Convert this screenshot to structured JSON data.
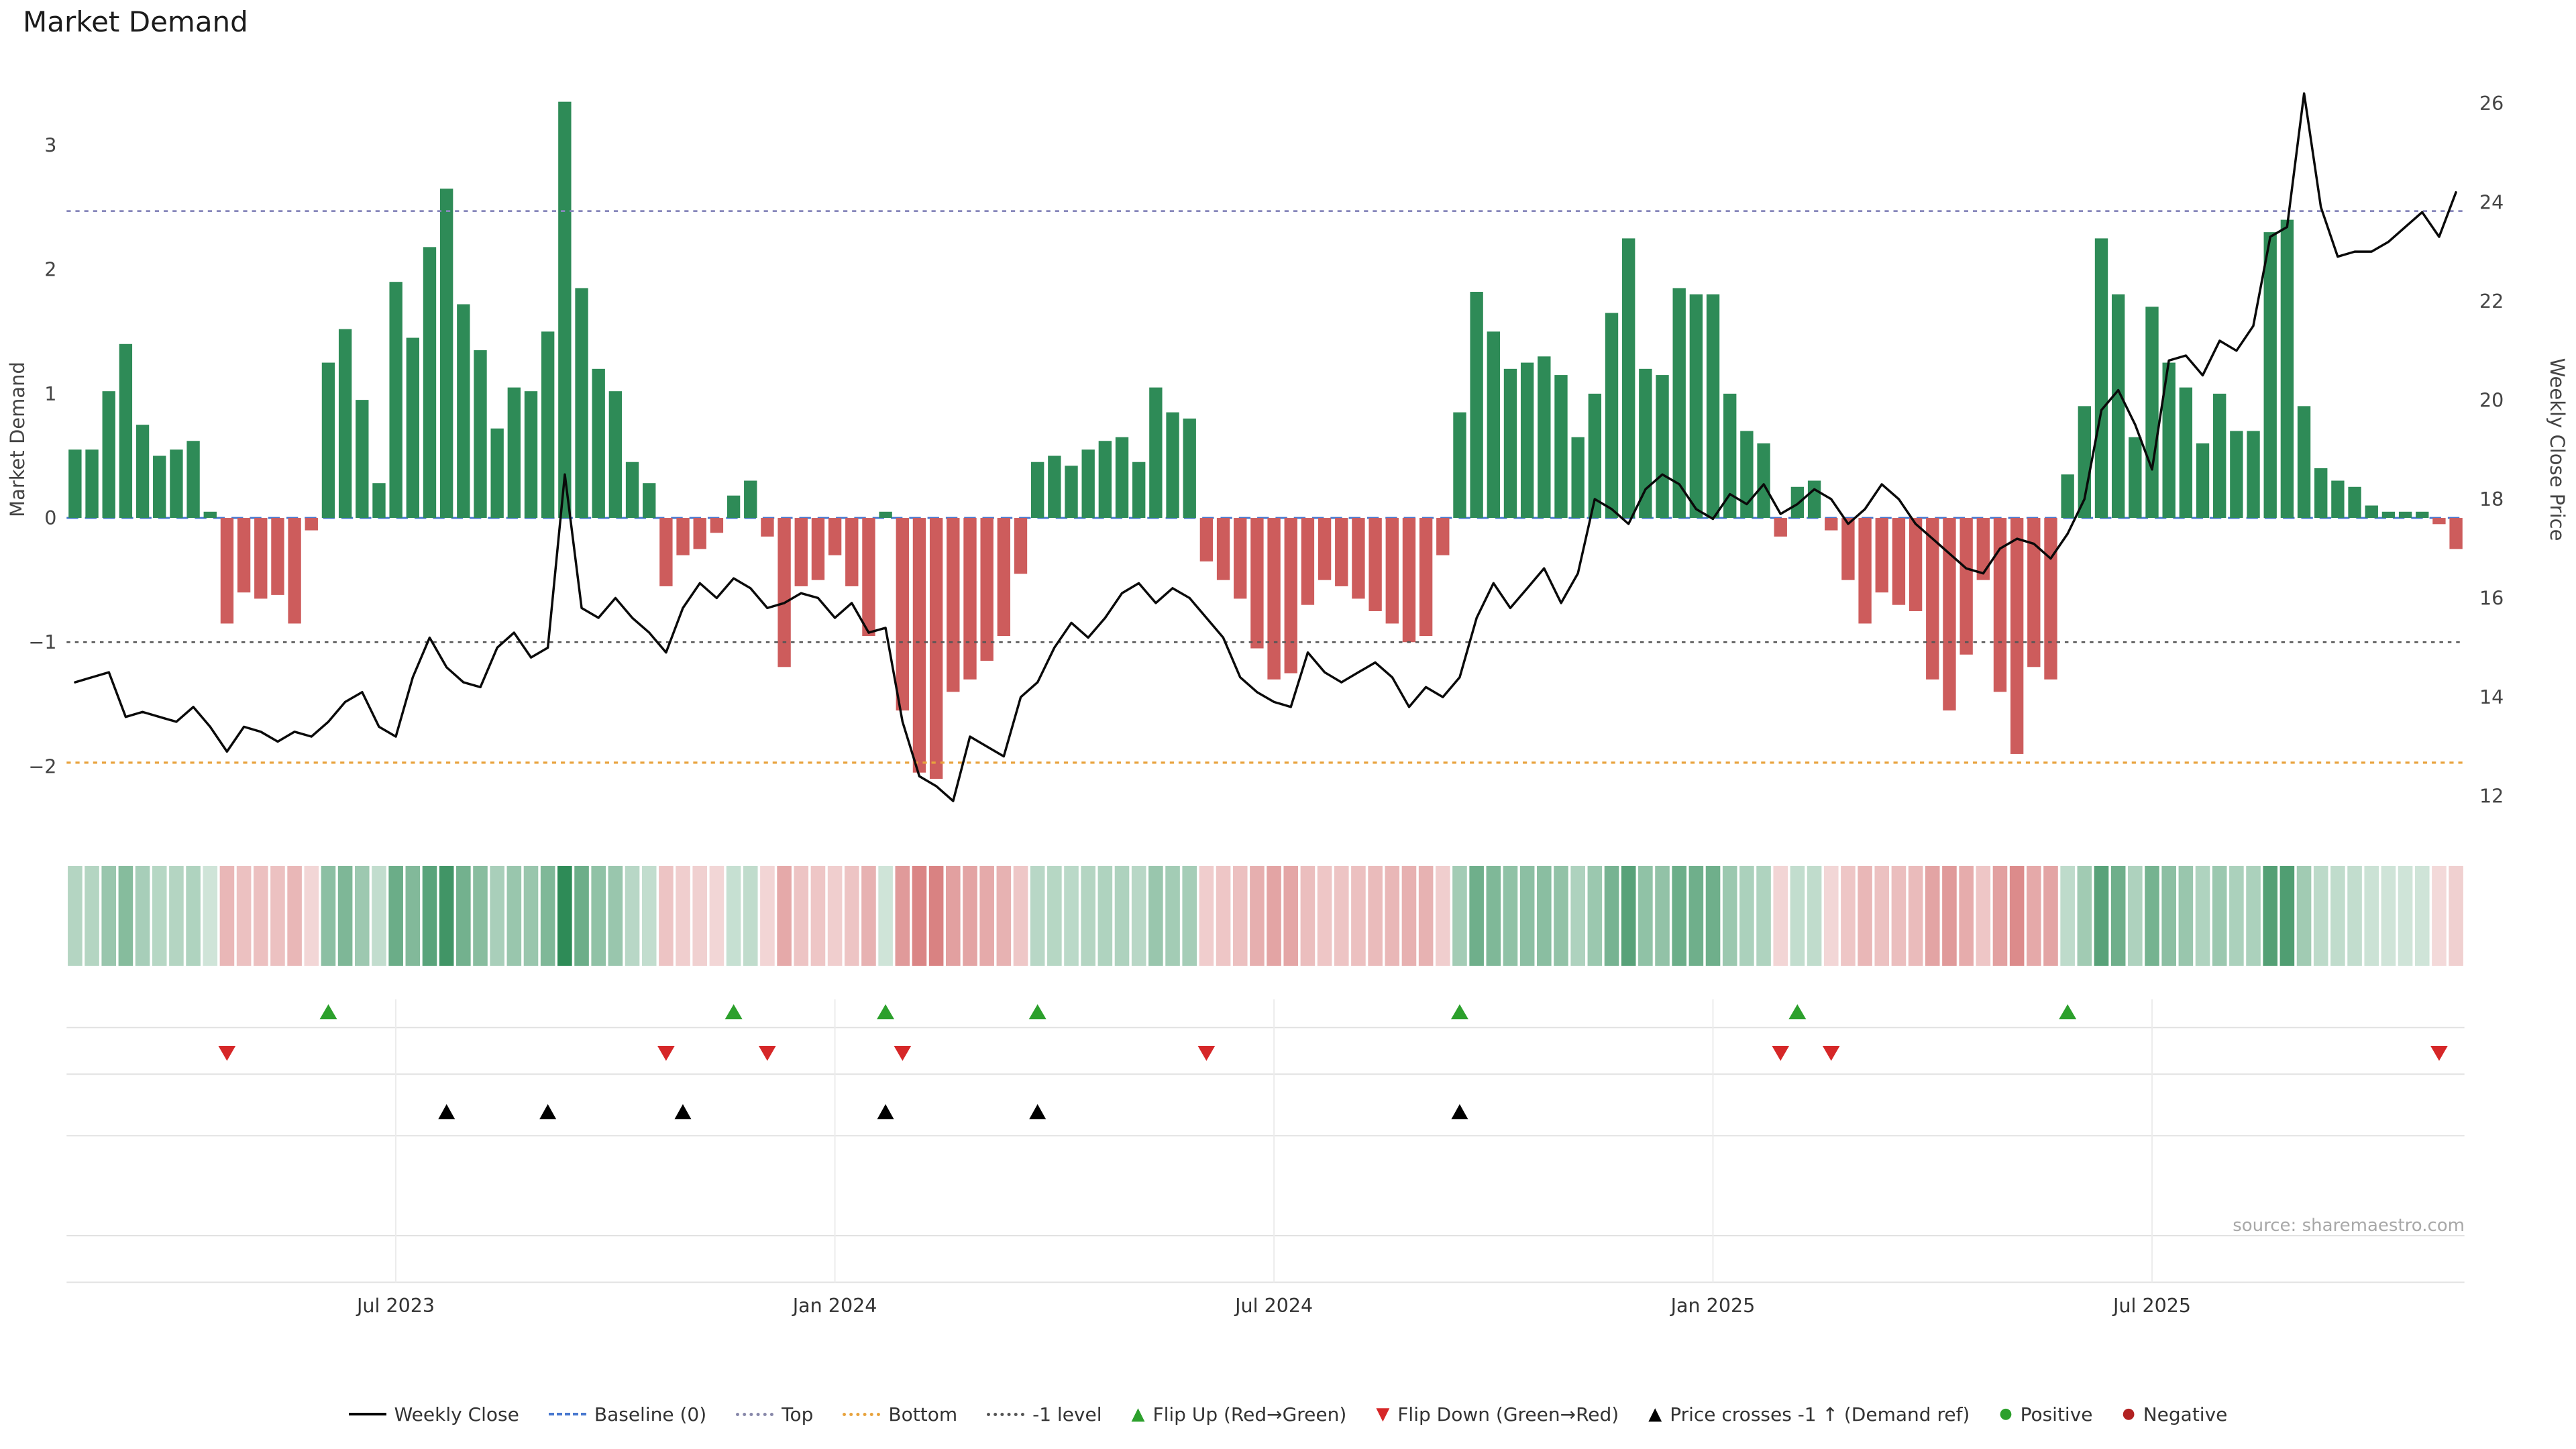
{
  "title": "Market Demand",
  "source": "source: sharemaestro.com",
  "colors": {
    "positive_bar": "#2e8b57",
    "negative_bar": "#cd5c5c",
    "price_line": "#0a0a0a",
    "grid": "#e2e2e2"
  },
  "chart_data": {
    "type": "combo",
    "title": "Market Demand",
    "x_start_date": "2023-02-20",
    "x_interval_days": 7,
    "n_weeks": 142,
    "left_axis": {
      "label": "Market Demand",
      "ticks": [
        3,
        2,
        1,
        0,
        -1,
        -2
      ],
      "range": [
        -2.3,
        3.55
      ]
    },
    "right_axis": {
      "label": "Weekly Close Price",
      "ticks": [
        26,
        24,
        22,
        20,
        18,
        16,
        14,
        12
      ],
      "range": [
        11.8,
        26.6
      ]
    },
    "x_ticks": [
      {
        "label": "Jul 2023",
        "week_index": 19
      },
      {
        "label": "Jan 2024",
        "week_index": 45
      },
      {
        "label": "Jul 2024",
        "week_index": 71
      },
      {
        "label": "Jan 2025",
        "week_index": 97
      },
      {
        "label": "Jul 2025",
        "week_index": 123
      }
    ],
    "reference_lines": {
      "baseline": {
        "value": 0,
        "color": "#4878cf",
        "style": "dashed"
      },
      "top": {
        "value": 2.47,
        "color": "#8888bb",
        "style": "dotted"
      },
      "bottom": {
        "value": -1.97,
        "color": "#e8a33d",
        "style": "dotted"
      },
      "minus_one": {
        "value": -1,
        "color": "#555555",
        "style": "dotted"
      }
    },
    "series": [
      {
        "name": "Market Demand",
        "type": "bar",
        "axis": "left",
        "values": [
          0.55,
          0.55,
          1.02,
          1.4,
          0.75,
          0.5,
          0.55,
          0.62,
          0.05,
          -0.85,
          -0.6,
          -0.65,
          -0.62,
          -0.85,
          -0.1,
          1.25,
          1.52,
          0.95,
          0.28,
          1.9,
          1.45,
          2.18,
          2.65,
          1.72,
          1.35,
          0.72,
          1.05,
          1.02,
          1.5,
          3.35,
          1.85,
          1.2,
          1.02,
          0.45,
          0.28,
          -0.55,
          -0.3,
          -0.25,
          -0.12,
          0.18,
          0.3,
          -0.15,
          -1.2,
          -0.55,
          -0.5,
          -0.3,
          -0.55,
          -0.95,
          0.05,
          -1.55,
          -2.05,
          -2.1,
          -1.4,
          -1.3,
          -1.15,
          -0.95,
          -0.45,
          0.45,
          0.5,
          0.42,
          0.55,
          0.62,
          0.65,
          0.45,
          1.05,
          0.85,
          0.8,
          -0.35,
          -0.5,
          -0.65,
          -1.05,
          -1.3,
          -1.25,
          -0.7,
          -0.5,
          -0.55,
          -0.65,
          -0.75,
          -0.85,
          -1.0,
          -0.95,
          -0.3,
          0.85,
          1.82,
          1.5,
          1.2,
          1.25,
          1.3,
          1.15,
          0.65,
          1.0,
          1.65,
          2.25,
          1.2,
          1.15,
          1.85,
          1.8,
          1.8,
          1.0,
          0.7,
          0.6,
          -0.15,
          0.25,
          0.3,
          -0.1,
          -0.5,
          -0.85,
          -0.6,
          -0.7,
          -0.75,
          -1.3,
          -1.55,
          -1.1,
          -0.5,
          -1.4,
          -1.9,
          -1.2,
          -1.3,
          0.35,
          0.9,
          2.25,
          1.8,
          0.65,
          1.7,
          1.25,
          1.05,
          0.6,
          1.0,
          0.7,
          0.7,
          2.3,
          2.4,
          0.9,
          0.4,
          0.3,
          0.25,
          0.1,
          0.05,
          0.05,
          0.05,
          -0.05,
          -0.25
        ]
      },
      {
        "name": "Weekly Close",
        "type": "line",
        "axis": "right",
        "values": [
          14.3,
          14.4,
          14.5,
          13.6,
          13.7,
          13.6,
          13.5,
          13.8,
          13.4,
          12.9,
          13.4,
          13.3,
          13.1,
          13.3,
          13.2,
          13.5,
          13.9,
          14.1,
          13.4,
          13.2,
          14.4,
          15.2,
          14.6,
          14.3,
          14.2,
          15.0,
          15.3,
          14.8,
          15.0,
          18.5,
          15.8,
          15.6,
          16.0,
          15.6,
          15.3,
          14.9,
          15.8,
          16.3,
          16.0,
          16.4,
          16.2,
          15.8,
          15.9,
          16.1,
          16.0,
          15.6,
          15.9,
          15.3,
          15.4,
          13.5,
          12.4,
          12.2,
          11.9,
          13.2,
          13.0,
          12.8,
          14.0,
          14.3,
          15.0,
          15.5,
          15.2,
          15.6,
          16.1,
          16.3,
          15.9,
          16.2,
          16.0,
          15.6,
          15.2,
          14.4,
          14.1,
          13.9,
          13.8,
          14.9,
          14.5,
          14.3,
          14.5,
          14.7,
          14.4,
          13.8,
          14.2,
          14.0,
          14.4,
          15.6,
          16.3,
          15.8,
          16.2,
          16.6,
          15.9,
          16.5,
          18.0,
          17.8,
          17.5,
          18.2,
          18.5,
          18.3,
          17.8,
          17.6,
          18.1,
          17.9,
          18.3,
          17.7,
          17.9,
          18.2,
          18.0,
          17.5,
          17.8,
          18.3,
          18.0,
          17.5,
          17.2,
          16.9,
          16.6,
          16.5,
          17.0,
          17.2,
          17.1,
          16.8,
          17.3,
          18.0,
          19.8,
          20.2,
          19.5,
          18.6,
          20.8,
          20.9,
          20.5,
          21.2,
          21.0,
          21.5,
          23.3,
          23.5,
          26.2,
          23.9,
          22.9,
          23.0,
          23.0,
          23.2,
          23.5,
          23.8,
          23.3,
          24.2
        ]
      }
    ],
    "markers": {
      "flip_up": {
        "weeks": [
          15,
          39,
          48,
          57,
          82,
          102,
          118
        ],
        "color": "#2ca02c",
        "shape": "triangle-up"
      },
      "flip_down": {
        "weeks": [
          9,
          35,
          41,
          49,
          67,
          101,
          104,
          140
        ],
        "color": "#d62728",
        "shape": "triangle-down"
      },
      "price_cross_minus1": {
        "weeks": [
          22,
          28,
          36,
          48,
          57,
          82
        ],
        "color": "#000000",
        "shape": "triangle-up"
      }
    },
    "heatmap": {
      "description": "weekly strip colored by Market Demand sign and intensity",
      "from_series": "Market Demand"
    }
  },
  "legend": [
    {
      "key": "weekly-close",
      "label": "Weekly Close",
      "swatch": "line",
      "color": "#000000"
    },
    {
      "key": "baseline",
      "label": "Baseline (0)",
      "swatch": "dashed-line",
      "color": "#4878cf"
    },
    {
      "key": "top",
      "label": "Top",
      "swatch": "dotted-line",
      "color": "#8888aa"
    },
    {
      "key": "bottom",
      "label": "Bottom",
      "swatch": "dotted-line",
      "color": "#e8a33d"
    },
    {
      "key": "minus1-level",
      "label": "-1 level",
      "swatch": "dotted-line",
      "color": "#555555"
    },
    {
      "key": "flip-up",
      "label": "Flip Up (Red→Green)",
      "swatch": "triangle-up",
      "color": "#2ca02c"
    },
    {
      "key": "flip-down",
      "label": "Flip Down (Green→Red)",
      "swatch": "triangle-down",
      "color": "#d62728"
    },
    {
      "key": "price-cross",
      "label": "Price crosses -1 ↑ (Demand ref)",
      "swatch": "triangle-up",
      "color": "#000000"
    },
    {
      "key": "positive",
      "label": "Positive",
      "swatch": "dot",
      "color": "#2ca02c"
    },
    {
      "key": "negative",
      "label": "Negative",
      "swatch": "dot",
      "color": "#b22222"
    }
  ]
}
